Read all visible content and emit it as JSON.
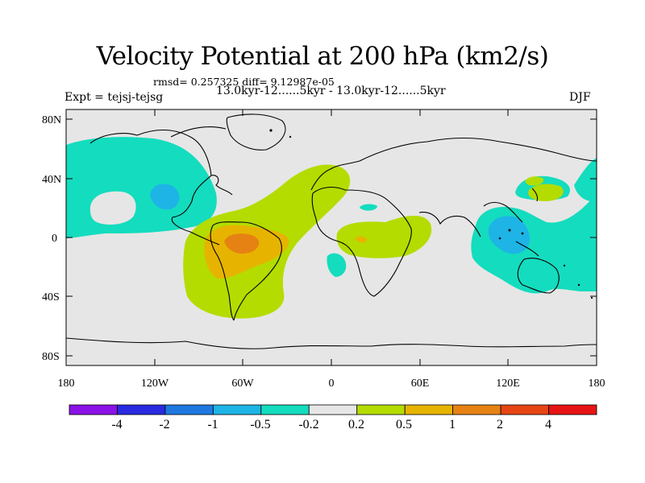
{
  "title": "Velocity Potential at 200 hPa (km2/s)",
  "stats": "rmsd= 0.257325 diff= 9.12987e-05",
  "period": "13.0kyr-12......5kyr - 13.0kyr-12......5kyr",
  "experiment": "Expt = tejsj-tejsg",
  "season": "DJF",
  "map": {
    "lon_range": [
      -180,
      180
    ],
    "lat_range": [
      -90,
      90
    ],
    "lon_ticks": [
      "180",
      "120W",
      "60W",
      "0",
      "60E",
      "120E",
      "180"
    ],
    "lat_ticks": [
      "80N",
      "40N",
      "0",
      "40S",
      "80S"
    ]
  },
  "colorbar": {
    "labels": [
      "-4",
      "-2",
      "-1",
      "-0.5",
      "-0.2",
      "0.2",
      "0.5",
      "1",
      "2",
      "4"
    ],
    "colors": [
      "#8a12e6",
      "#2a2ae0",
      "#1e78e0",
      "#1eb4e6",
      "#14dcbe",
      "#e6e6e6",
      "#b4dc00",
      "#e6b400",
      "#e68214",
      "#e64614",
      "#e61414"
    ]
  },
  "colors": {
    "neutral": "#e6e6e6",
    "cyan": "#14dcbe",
    "light_blue": "#1eb4e6",
    "yellow_green": "#b4dc00",
    "yellow": "#e6b400",
    "orange": "#e68214"
  }
}
